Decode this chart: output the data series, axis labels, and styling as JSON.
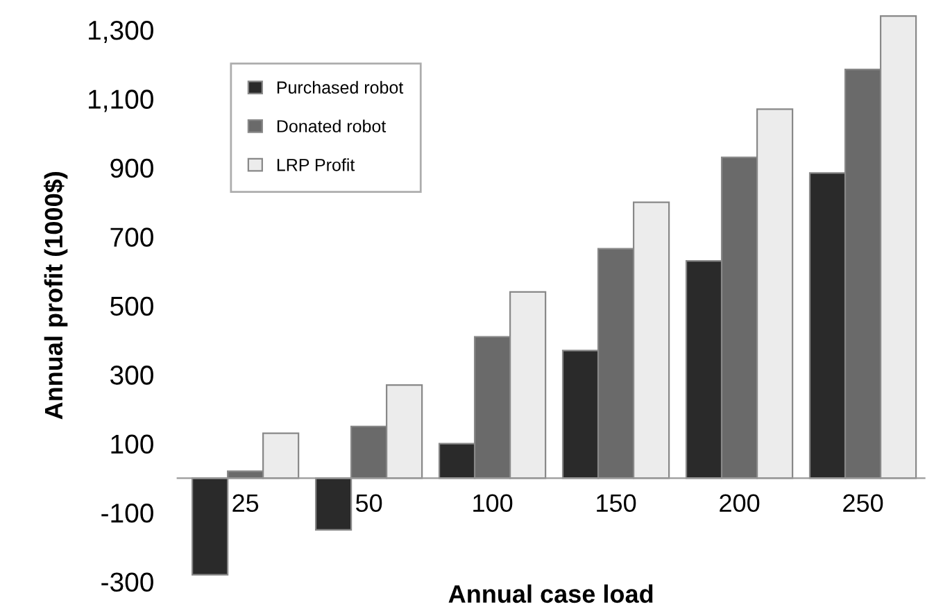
{
  "chart_data": {
    "type": "bar",
    "xlabel": "Annual case load",
    "ylabel": "Annual profit (1000$)",
    "categories": [
      "25",
      "50",
      "100",
      "150",
      "200",
      "250"
    ],
    "series": [
      {
        "name": "Purchased robot",
        "color": "#2a2a2a",
        "values": [
          -280,
          -150,
          100,
          370,
          630,
          885
        ]
      },
      {
        "name": "Donated robot",
        "color": "#6a6a6a",
        "values": [
          20,
          150,
          410,
          665,
          930,
          1185
        ]
      },
      {
        "name": "LRP Profit",
        "color": "#ececec",
        "values": [
          130,
          270,
          540,
          800,
          1070,
          1340
        ]
      }
    ],
    "ylim": [
      -300,
      1360
    ],
    "yticks": [
      {
        "value": -300,
        "label": "-300"
      },
      {
        "value": -100,
        "label": "-100"
      },
      100,
      300,
      500,
      700,
      900,
      {
        "value": 1100,
        "label": "1,100"
      },
      {
        "value": 1300,
        "label": "1,300"
      }
    ],
    "grid": false,
    "legend": "top left"
  }
}
